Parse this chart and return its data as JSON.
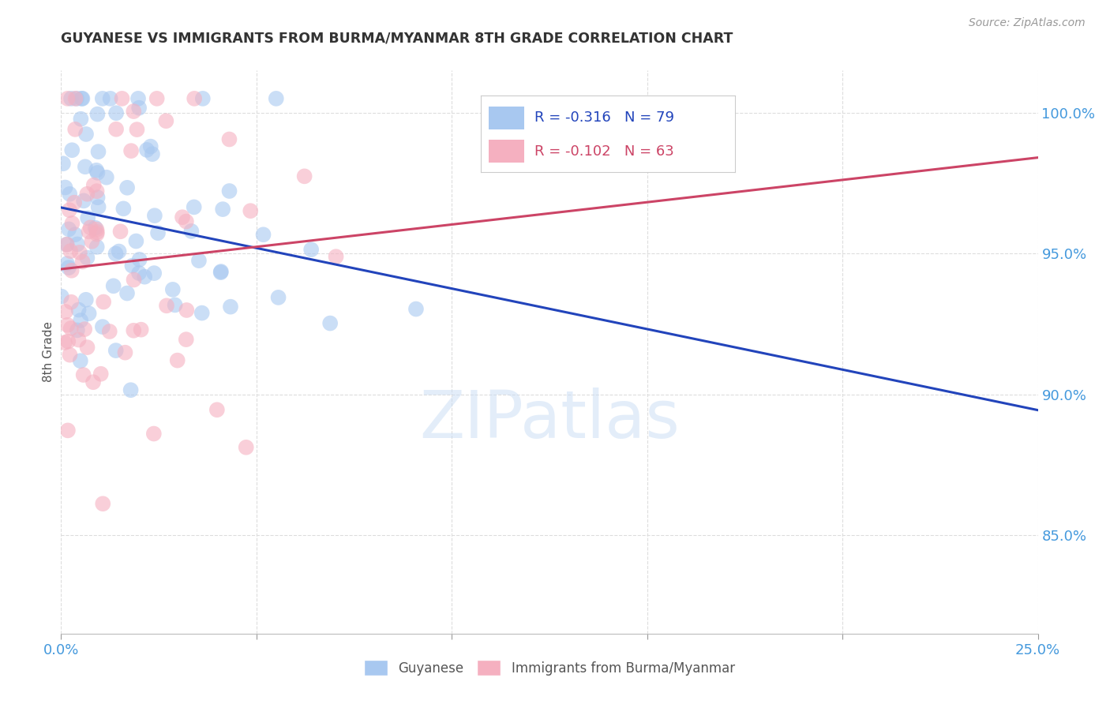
{
  "title": "GUYANESE VS IMMIGRANTS FROM BURMA/MYANMAR 8TH GRADE CORRELATION CHART",
  "source": "Source: ZipAtlas.com",
  "ylabel": "8th Grade",
  "ytick_labels": [
    "100.0%",
    "95.0%",
    "90.0%",
    "85.0%"
  ],
  "ytick_values": [
    1.0,
    0.95,
    0.9,
    0.85
  ],
  "xlim": [
    0.0,
    0.25
  ],
  "ylim": [
    0.815,
    1.015
  ],
  "watermark": "ZIPatlas",
  "legend_entry1": "Guyanese",
  "legend_entry2": "Immigrants from Burma/Myanmar",
  "R1": -0.316,
  "N1": 79,
  "R2": -0.102,
  "N2": 63,
  "color_blue": "#a8c8f0",
  "color_pink": "#f5b0c0",
  "color_blue_line": "#2244bb",
  "color_pink_line": "#cc4466",
  "color_axis_labels": "#4499dd",
  "background": "#ffffff",
  "seed": 42
}
